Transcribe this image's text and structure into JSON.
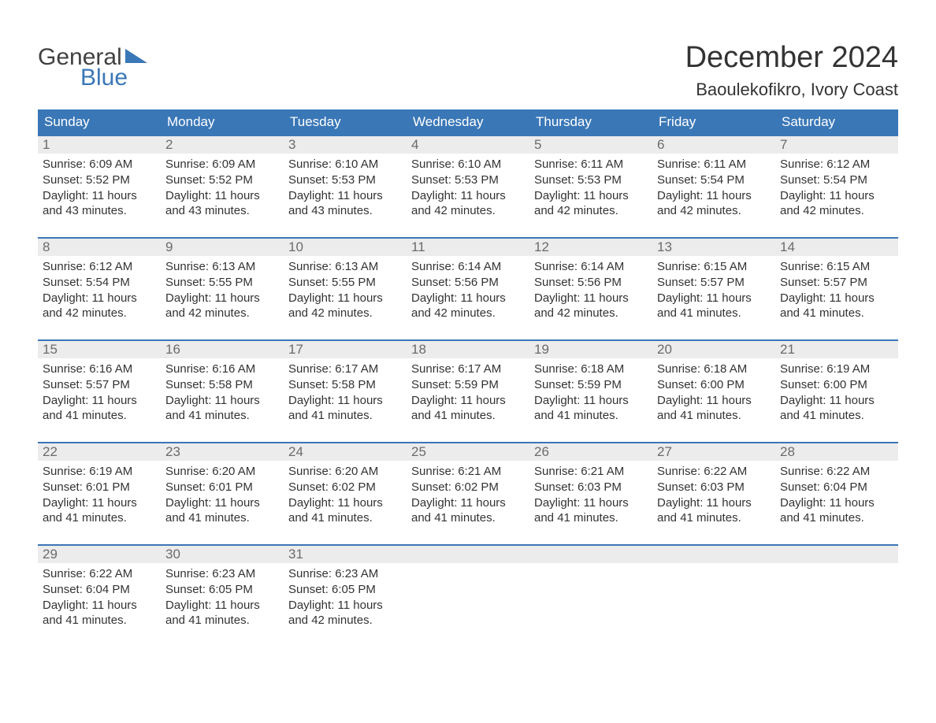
{
  "logo": {
    "word1": "General",
    "word2": "Blue"
  },
  "title": "December 2024",
  "location": "Baoulekofikro, Ivory Coast",
  "colors": {
    "brand_blue": "#3a77b7",
    "header_text": "#ffffff",
    "day_num_bg": "#ececec",
    "day_num_text": "#6b6b6b",
    "body_text": "#333333",
    "row_border": "#3a77b7",
    "background": "#ffffff"
  },
  "weekdays": [
    "Sunday",
    "Monday",
    "Tuesday",
    "Wednesday",
    "Thursday",
    "Friday",
    "Saturday"
  ],
  "weeks": [
    [
      {
        "day": "1",
        "sunrise": "Sunrise: 6:09 AM",
        "sunset": "Sunset: 5:52 PM",
        "daylight1": "Daylight: 11 hours",
        "daylight2": "and 43 minutes."
      },
      {
        "day": "2",
        "sunrise": "Sunrise: 6:09 AM",
        "sunset": "Sunset: 5:52 PM",
        "daylight1": "Daylight: 11 hours",
        "daylight2": "and 43 minutes."
      },
      {
        "day": "3",
        "sunrise": "Sunrise: 6:10 AM",
        "sunset": "Sunset: 5:53 PM",
        "daylight1": "Daylight: 11 hours",
        "daylight2": "and 43 minutes."
      },
      {
        "day": "4",
        "sunrise": "Sunrise: 6:10 AM",
        "sunset": "Sunset: 5:53 PM",
        "daylight1": "Daylight: 11 hours",
        "daylight2": "and 42 minutes."
      },
      {
        "day": "5",
        "sunrise": "Sunrise: 6:11 AM",
        "sunset": "Sunset: 5:53 PM",
        "daylight1": "Daylight: 11 hours",
        "daylight2": "and 42 minutes."
      },
      {
        "day": "6",
        "sunrise": "Sunrise: 6:11 AM",
        "sunset": "Sunset: 5:54 PM",
        "daylight1": "Daylight: 11 hours",
        "daylight2": "and 42 minutes."
      },
      {
        "day": "7",
        "sunrise": "Sunrise: 6:12 AM",
        "sunset": "Sunset: 5:54 PM",
        "daylight1": "Daylight: 11 hours",
        "daylight2": "and 42 minutes."
      }
    ],
    [
      {
        "day": "8",
        "sunrise": "Sunrise: 6:12 AM",
        "sunset": "Sunset: 5:54 PM",
        "daylight1": "Daylight: 11 hours",
        "daylight2": "and 42 minutes."
      },
      {
        "day": "9",
        "sunrise": "Sunrise: 6:13 AM",
        "sunset": "Sunset: 5:55 PM",
        "daylight1": "Daylight: 11 hours",
        "daylight2": "and 42 minutes."
      },
      {
        "day": "10",
        "sunrise": "Sunrise: 6:13 AM",
        "sunset": "Sunset: 5:55 PM",
        "daylight1": "Daylight: 11 hours",
        "daylight2": "and 42 minutes."
      },
      {
        "day": "11",
        "sunrise": "Sunrise: 6:14 AM",
        "sunset": "Sunset: 5:56 PM",
        "daylight1": "Daylight: 11 hours",
        "daylight2": "and 42 minutes."
      },
      {
        "day": "12",
        "sunrise": "Sunrise: 6:14 AM",
        "sunset": "Sunset: 5:56 PM",
        "daylight1": "Daylight: 11 hours",
        "daylight2": "and 42 minutes."
      },
      {
        "day": "13",
        "sunrise": "Sunrise: 6:15 AM",
        "sunset": "Sunset: 5:57 PM",
        "daylight1": "Daylight: 11 hours",
        "daylight2": "and 41 minutes."
      },
      {
        "day": "14",
        "sunrise": "Sunrise: 6:15 AM",
        "sunset": "Sunset: 5:57 PM",
        "daylight1": "Daylight: 11 hours",
        "daylight2": "and 41 minutes."
      }
    ],
    [
      {
        "day": "15",
        "sunrise": "Sunrise: 6:16 AM",
        "sunset": "Sunset: 5:57 PM",
        "daylight1": "Daylight: 11 hours",
        "daylight2": "and 41 minutes."
      },
      {
        "day": "16",
        "sunrise": "Sunrise: 6:16 AM",
        "sunset": "Sunset: 5:58 PM",
        "daylight1": "Daylight: 11 hours",
        "daylight2": "and 41 minutes."
      },
      {
        "day": "17",
        "sunrise": "Sunrise: 6:17 AM",
        "sunset": "Sunset: 5:58 PM",
        "daylight1": "Daylight: 11 hours",
        "daylight2": "and 41 minutes."
      },
      {
        "day": "18",
        "sunrise": "Sunrise: 6:17 AM",
        "sunset": "Sunset: 5:59 PM",
        "daylight1": "Daylight: 11 hours",
        "daylight2": "and 41 minutes."
      },
      {
        "day": "19",
        "sunrise": "Sunrise: 6:18 AM",
        "sunset": "Sunset: 5:59 PM",
        "daylight1": "Daylight: 11 hours",
        "daylight2": "and 41 minutes."
      },
      {
        "day": "20",
        "sunrise": "Sunrise: 6:18 AM",
        "sunset": "Sunset: 6:00 PM",
        "daylight1": "Daylight: 11 hours",
        "daylight2": "and 41 minutes."
      },
      {
        "day": "21",
        "sunrise": "Sunrise: 6:19 AM",
        "sunset": "Sunset: 6:00 PM",
        "daylight1": "Daylight: 11 hours",
        "daylight2": "and 41 minutes."
      }
    ],
    [
      {
        "day": "22",
        "sunrise": "Sunrise: 6:19 AM",
        "sunset": "Sunset: 6:01 PM",
        "daylight1": "Daylight: 11 hours",
        "daylight2": "and 41 minutes."
      },
      {
        "day": "23",
        "sunrise": "Sunrise: 6:20 AM",
        "sunset": "Sunset: 6:01 PM",
        "daylight1": "Daylight: 11 hours",
        "daylight2": "and 41 minutes."
      },
      {
        "day": "24",
        "sunrise": "Sunrise: 6:20 AM",
        "sunset": "Sunset: 6:02 PM",
        "daylight1": "Daylight: 11 hours",
        "daylight2": "and 41 minutes."
      },
      {
        "day": "25",
        "sunrise": "Sunrise: 6:21 AM",
        "sunset": "Sunset: 6:02 PM",
        "daylight1": "Daylight: 11 hours",
        "daylight2": "and 41 minutes."
      },
      {
        "day": "26",
        "sunrise": "Sunrise: 6:21 AM",
        "sunset": "Sunset: 6:03 PM",
        "daylight1": "Daylight: 11 hours",
        "daylight2": "and 41 minutes."
      },
      {
        "day": "27",
        "sunrise": "Sunrise: 6:22 AM",
        "sunset": "Sunset: 6:03 PM",
        "daylight1": "Daylight: 11 hours",
        "daylight2": "and 41 minutes."
      },
      {
        "day": "28",
        "sunrise": "Sunrise: 6:22 AM",
        "sunset": "Sunset: 6:04 PM",
        "daylight1": "Daylight: 11 hours",
        "daylight2": "and 41 minutes."
      }
    ],
    [
      {
        "day": "29",
        "sunrise": "Sunrise: 6:22 AM",
        "sunset": "Sunset: 6:04 PM",
        "daylight1": "Daylight: 11 hours",
        "daylight2": "and 41 minutes."
      },
      {
        "day": "30",
        "sunrise": "Sunrise: 6:23 AM",
        "sunset": "Sunset: 6:05 PM",
        "daylight1": "Daylight: 11 hours",
        "daylight2": "and 41 minutes."
      },
      {
        "day": "31",
        "sunrise": "Sunrise: 6:23 AM",
        "sunset": "Sunset: 6:05 PM",
        "daylight1": "Daylight: 11 hours",
        "daylight2": "and 42 minutes."
      },
      {
        "day": "",
        "sunrise": "",
        "sunset": "",
        "daylight1": "",
        "daylight2": ""
      },
      {
        "day": "",
        "sunrise": "",
        "sunset": "",
        "daylight1": "",
        "daylight2": ""
      },
      {
        "day": "",
        "sunrise": "",
        "sunset": "",
        "daylight1": "",
        "daylight2": ""
      },
      {
        "day": "",
        "sunrise": "",
        "sunset": "",
        "daylight1": "",
        "daylight2": ""
      }
    ]
  ]
}
